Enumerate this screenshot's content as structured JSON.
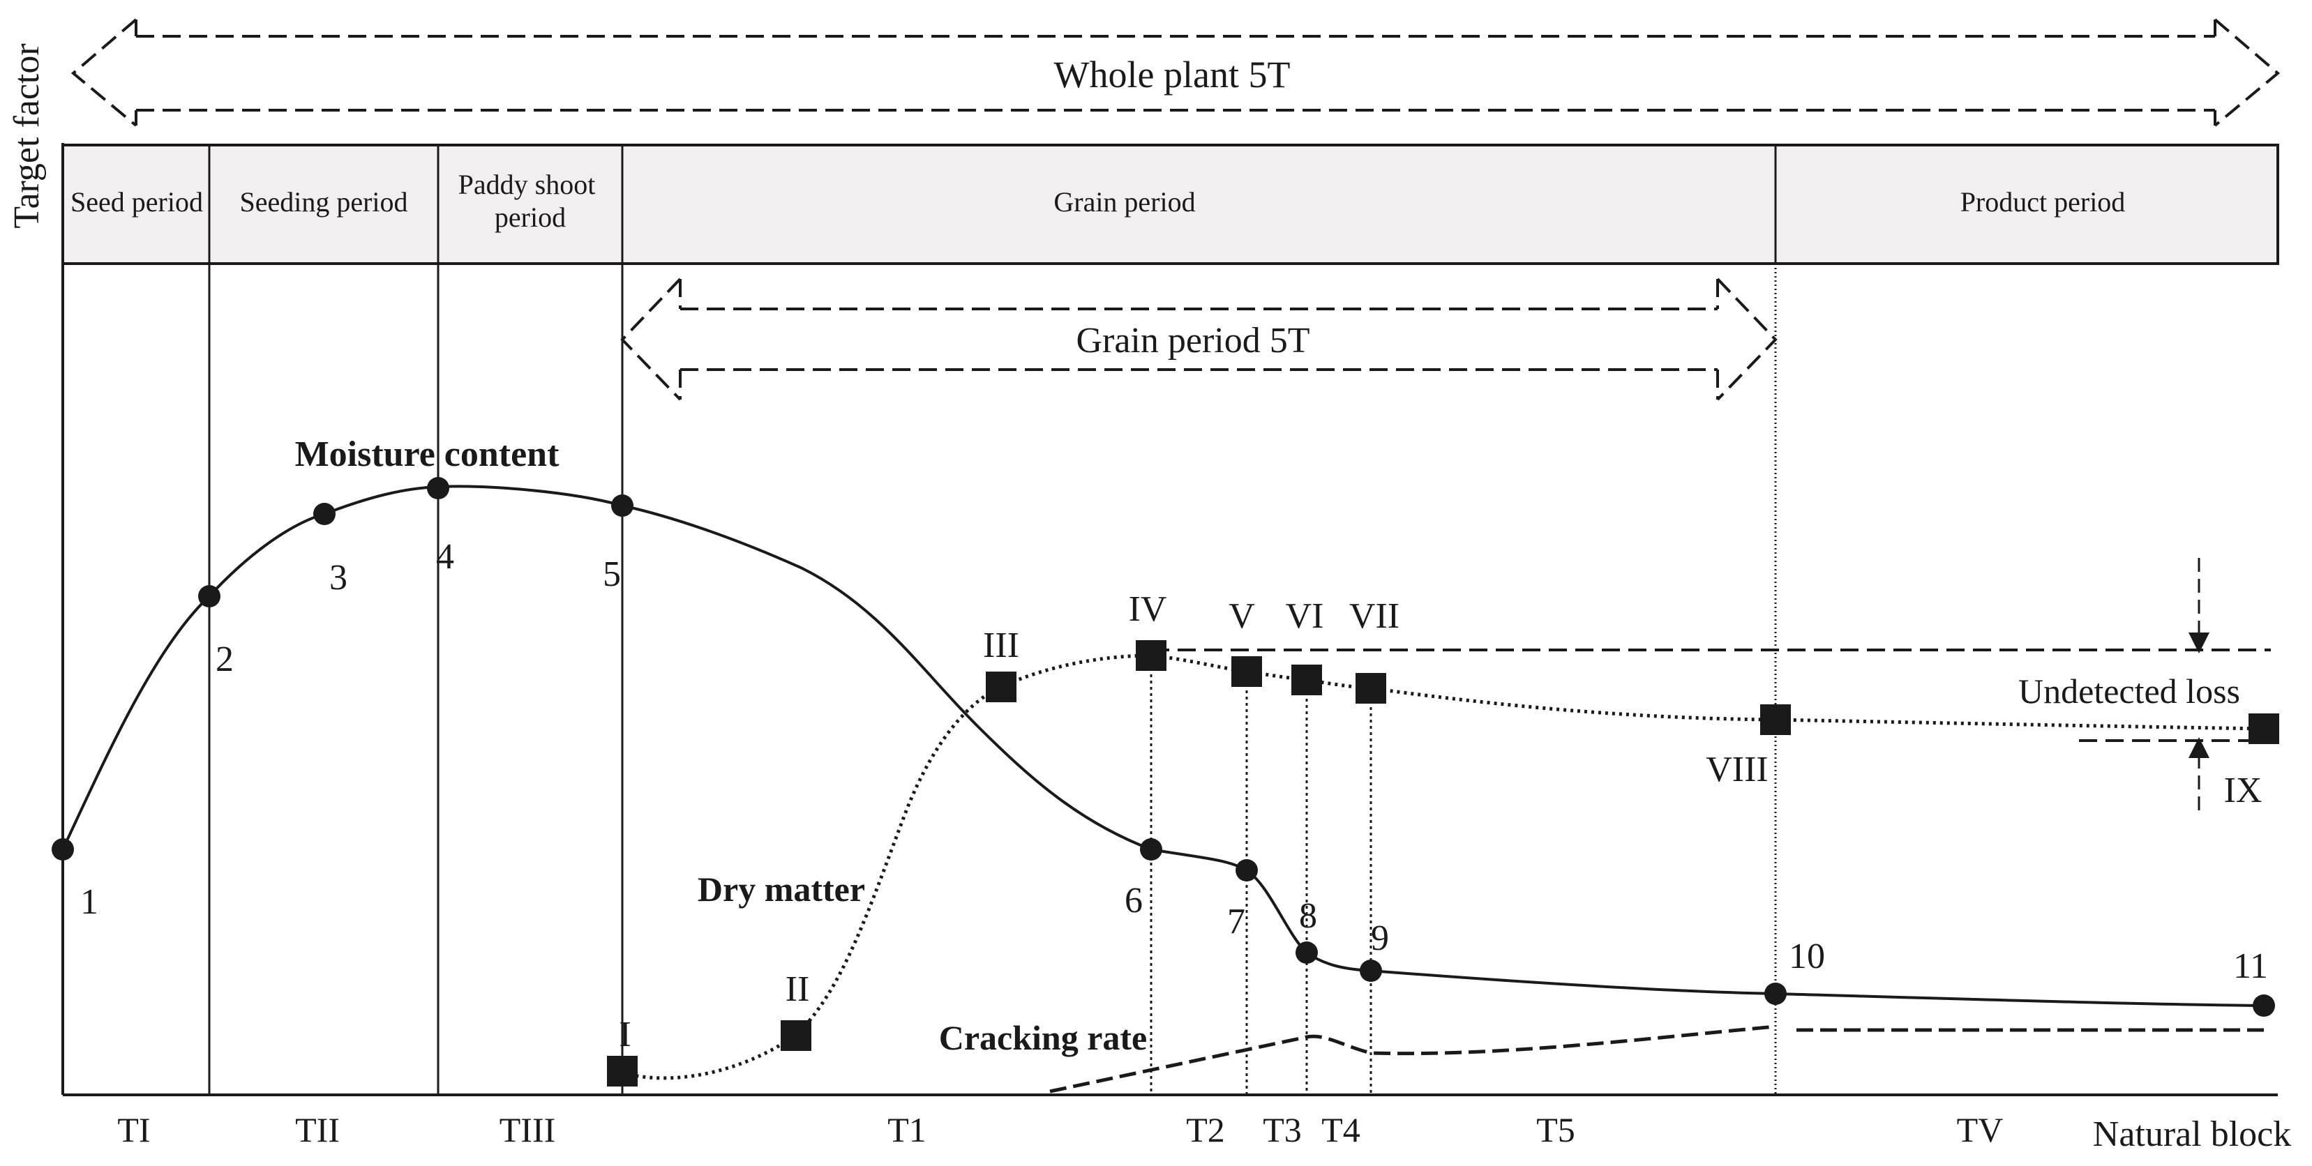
{
  "y_axis_label": "Target factor",
  "x_axis_label": "Natural block",
  "whole_plant_label": "Whole plant 5T",
  "grain_period_5t_label": "Grain period 5T",
  "periods": [
    "Seed period",
    "Seeding period",
    "Paddy shoot period",
    "Grain period",
    "Product period"
  ],
  "paddy_shoot_lines": [
    "Paddy shoot",
    "period"
  ],
  "curves": {
    "moisture": "Moisture content",
    "dry_matter": "Dry matter",
    "cracking": "Cracking rate"
  },
  "moisture_points": [
    "1",
    "2",
    "3",
    "4",
    "5",
    "6",
    "7",
    "8",
    "9",
    "10",
    "11"
  ],
  "dry_matter_points": [
    "I",
    "II",
    "III",
    "IV",
    "V",
    "VI",
    "VII",
    "VIII"
  ],
  "loss_label": "Undetected loss",
  "loss_marker": "IX",
  "stages": [
    "TI",
    "TII",
    "TIII",
    "T1",
    "T2",
    "T3",
    "T4",
    "T5",
    "TV"
  ],
  "colors": {
    "ink": "#1a1a1a",
    "band_fill": "#f2eff0"
  }
}
